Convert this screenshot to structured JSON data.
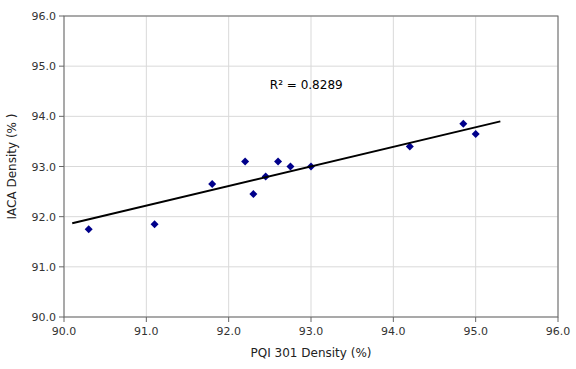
{
  "chart_data": {
    "type": "scatter",
    "series": [
      {
        "type": "scatter",
        "marker": "diamond",
        "color": "#00008B",
        "x": [
          90.3,
          91.1,
          91.8,
          92.2,
          92.3,
          92.45,
          92.6,
          92.75,
          93.0,
          94.2,
          94.85,
          95.0
        ],
        "values": [
          91.75,
          91.85,
          92.65,
          93.1,
          92.45,
          92.8,
          93.1,
          93.0,
          93.0,
          93.4,
          93.85,
          93.65
        ]
      },
      {
        "type": "line",
        "line_style": "solid",
        "color": "#000000",
        "x": [
          90.1,
          95.3
        ],
        "values": [
          91.87,
          93.9
        ]
      }
    ],
    "annotations": [
      {
        "text": "R² = 0.8289",
        "x": 92.5,
        "y": 94.55
      }
    ],
    "x_label": "PQI 301 Density  (%)",
    "y_label": "IACA Density  (% )",
    "xlim": [
      90.0,
      96.0
    ],
    "ylim": [
      90.0,
      96.0
    ],
    "xticks": [
      {
        "value": 90.0,
        "label": "90.0"
      },
      {
        "value": 91.0,
        "label": "91.0"
      },
      {
        "value": 92.0,
        "label": "92.0"
      },
      {
        "value": 93.0,
        "label": "93.0"
      },
      {
        "value": 94.0,
        "label": "94.0"
      },
      {
        "value": 95.0,
        "label": "95.0"
      },
      {
        "value": 96.0,
        "label": "96.0"
      }
    ],
    "yticks": [
      {
        "value": 90.0,
        "label": "90.0"
      },
      {
        "value": 91.0,
        "label": "91.0"
      },
      {
        "value": 92.0,
        "label": "92.0"
      },
      {
        "value": 93.0,
        "label": "93.0"
      },
      {
        "value": 94.0,
        "label": "94.0"
      },
      {
        "value": 95.0,
        "label": "95.0"
      },
      {
        "value": 96.0,
        "label": "96.0"
      }
    ],
    "grid": true
  }
}
